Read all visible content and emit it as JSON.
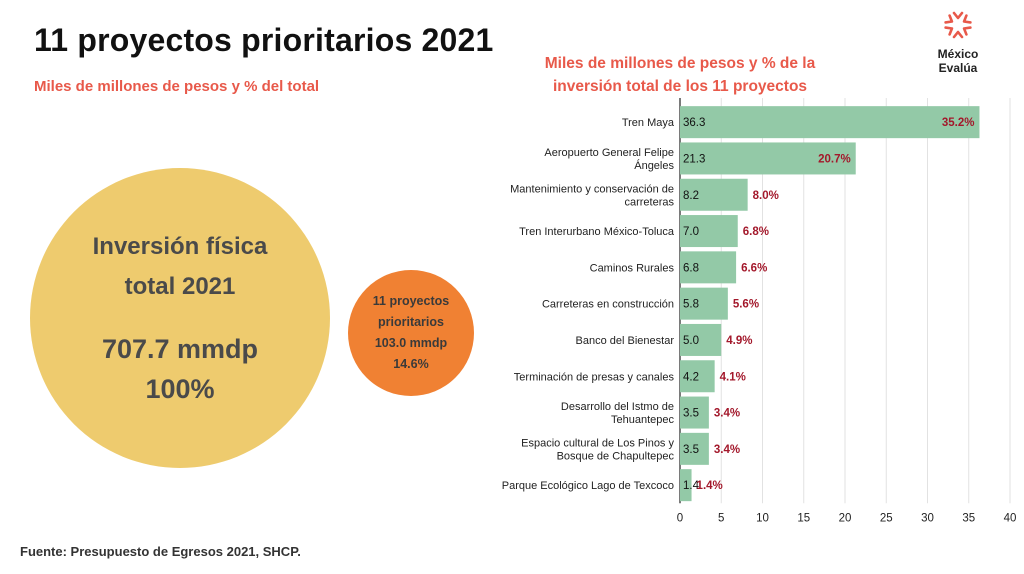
{
  "header": {
    "title": "11 proyectos prioritarios 2021",
    "subtitle": "Miles de millones de pesos y % del total"
  },
  "logo": {
    "name": "México Evalúa",
    "icon": "mexico-evalua-star-icon",
    "color": "#e8594a"
  },
  "total_circle": {
    "label": "Inversión física total 2021",
    "amount": "707.7 mmdp",
    "pct": "100%",
    "color": "#eecb6e"
  },
  "priority_circle": {
    "label": "11 proyectos prioritarios",
    "amount": "103.0 mmdp",
    "pct": "14.6%",
    "color": "#f08133"
  },
  "chart_data": {
    "type": "bar",
    "orientation": "horizontal",
    "title": "Miles de millones de pesos y % de la inversión total de los 11 proyectos",
    "categories": [
      "Tren Maya",
      "Aeropuerto General Felipe Ángeles",
      "Mantenimiento y conservación de carreteras",
      "Tren Interurbano México-Toluca",
      "Caminos Rurales",
      "Carreteras en construcción",
      "Banco del Bienestar",
      "Terminación de presas y canales",
      "Desarrollo del Istmo de Tehuantepec",
      "Espacio cultural de Los Pinos y Bosque de Chapultepec",
      "Parque Ecológico Lago de Texcoco"
    ],
    "values": [
      36.3,
      21.3,
      8.2,
      7.0,
      6.8,
      5.8,
      5.0,
      4.2,
      3.5,
      3.5,
      1.4
    ],
    "value_labels": [
      "36.3",
      "21.3",
      "8.2",
      "7.0",
      "6.8",
      "5.8",
      "5.0",
      "4.2",
      "3.5",
      "3.5",
      "1.4"
    ],
    "pct_labels": [
      "35.2%",
      "20.7%",
      "8.0%",
      "6.8%",
      "6.6%",
      "5.6%",
      "4.9%",
      "4.1%",
      "3.4%",
      "3.4%",
      "1.4%"
    ],
    "xlim": [
      0,
      40
    ],
    "xticks": [
      "0",
      "5",
      "10",
      "15",
      "20",
      "25",
      "30",
      "35",
      "40"
    ],
    "grid": true,
    "bar_color": "#93c9a7",
    "pct_color": "#a3182b"
  },
  "source": "Fuente: Presupuesto de Egresos 2021, SHCP."
}
